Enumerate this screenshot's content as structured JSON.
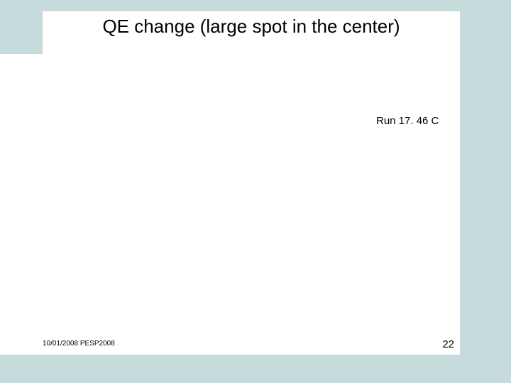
{
  "colors": {
    "band": "#c6dcdc",
    "background": "#ffffff",
    "text": "#000000"
  },
  "slide": {
    "title": "QE change (large spot in the center)",
    "run_label": "Run 17. 46 C",
    "footer_left": "10/01/2008 PESP2008",
    "page_number": "22"
  }
}
